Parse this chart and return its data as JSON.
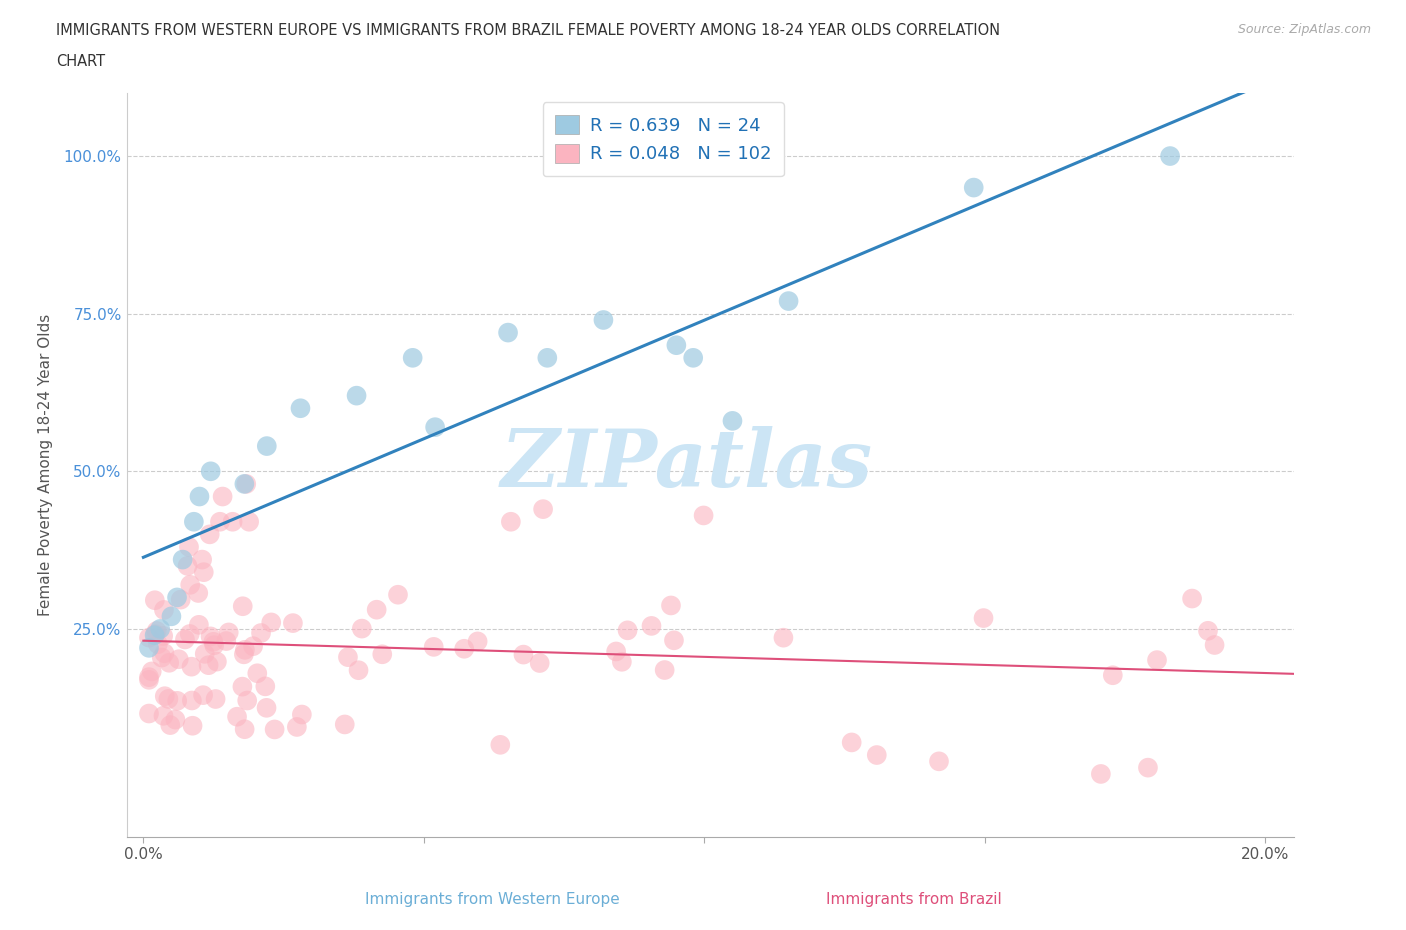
{
  "title_line1": "IMMIGRANTS FROM WESTERN EUROPE VS IMMIGRANTS FROM BRAZIL FEMALE POVERTY AMONG 18-24 YEAR OLDS CORRELATION",
  "title_line2": "CHART",
  "source": "Source: ZipAtlas.com",
  "ylabel": "Female Poverty Among 18-24 Year Olds",
  "xlabel_blue": "Immigrants from Western Europe",
  "xlabel_pink": "Immigrants from Brazil",
  "R_blue": 0.639,
  "N_blue": 24,
  "R_pink": 0.048,
  "N_pink": 102,
  "color_blue": "#9ecae1",
  "color_pink": "#fbb4c0",
  "line_color_blue": "#3182bd",
  "line_color_pink": "#de4f7a",
  "watermark": "ZIPatlas",
  "watermark_color": "#cce5f5",
  "blue_scatter_seed": 10,
  "pink_scatter_seed": 20
}
